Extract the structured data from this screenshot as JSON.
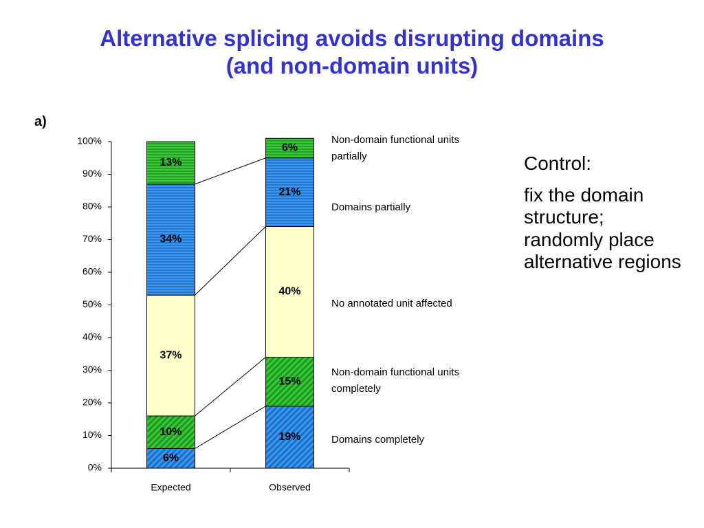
{
  "slide_title": "Alternative splicing avoids disrupting domains\n(and non-domain units)",
  "panel_label": "a)",
  "side_text": {
    "heading": "Control:",
    "body": "fix the domain structure; randomly place alternative regions"
  },
  "chart_data": {
    "type": "stacked_bar",
    "categories": [
      "Expected",
      "Observed"
    ],
    "ylim": [
      0,
      100
    ],
    "yticks": [
      {
        "value": 0,
        "label": "0%"
      },
      {
        "value": 10,
        "label": "10%"
      },
      {
        "value": 20,
        "label": "20%"
      },
      {
        "value": 30,
        "label": "30%"
      },
      {
        "value": 40,
        "label": "40%"
      },
      {
        "value": 50,
        "label": "50%"
      },
      {
        "value": 60,
        "label": "60%"
      },
      {
        "value": 70,
        "label": "70%"
      },
      {
        "value": 80,
        "label": "80%"
      },
      {
        "value": 90,
        "label": "90%"
      },
      {
        "value": 100,
        "label": "100%"
      }
    ],
    "grid": false,
    "series": [
      {
        "name": "Domains completely",
        "color": "#3399ff",
        "hatch": "diagonal",
        "values": [
          6,
          19
        ],
        "value_labels": [
          "6%",
          "19%"
        ]
      },
      {
        "name": "Non-domain functional units completely",
        "color": "#33cc33",
        "hatch": "diagonal",
        "values": [
          10,
          15
        ],
        "value_labels": [
          "10%",
          "15%"
        ]
      },
      {
        "name": "No annotated unit affected",
        "color": "#ffffcc",
        "hatch": "none",
        "values": [
          37,
          40
        ],
        "value_labels": [
          "37%",
          "40%"
        ]
      },
      {
        "name": "Domains partially",
        "color": "#3399ff",
        "hatch": "horizontal",
        "values": [
          34,
          21
        ],
        "value_labels": [
          "34%",
          "21%"
        ]
      },
      {
        "name": "Non-domain functional units partially",
        "color": "#33cc33",
        "hatch": "horizontal",
        "values": [
          13,
          6
        ],
        "value_labels": [
          "13%",
          "6%"
        ]
      }
    ]
  }
}
